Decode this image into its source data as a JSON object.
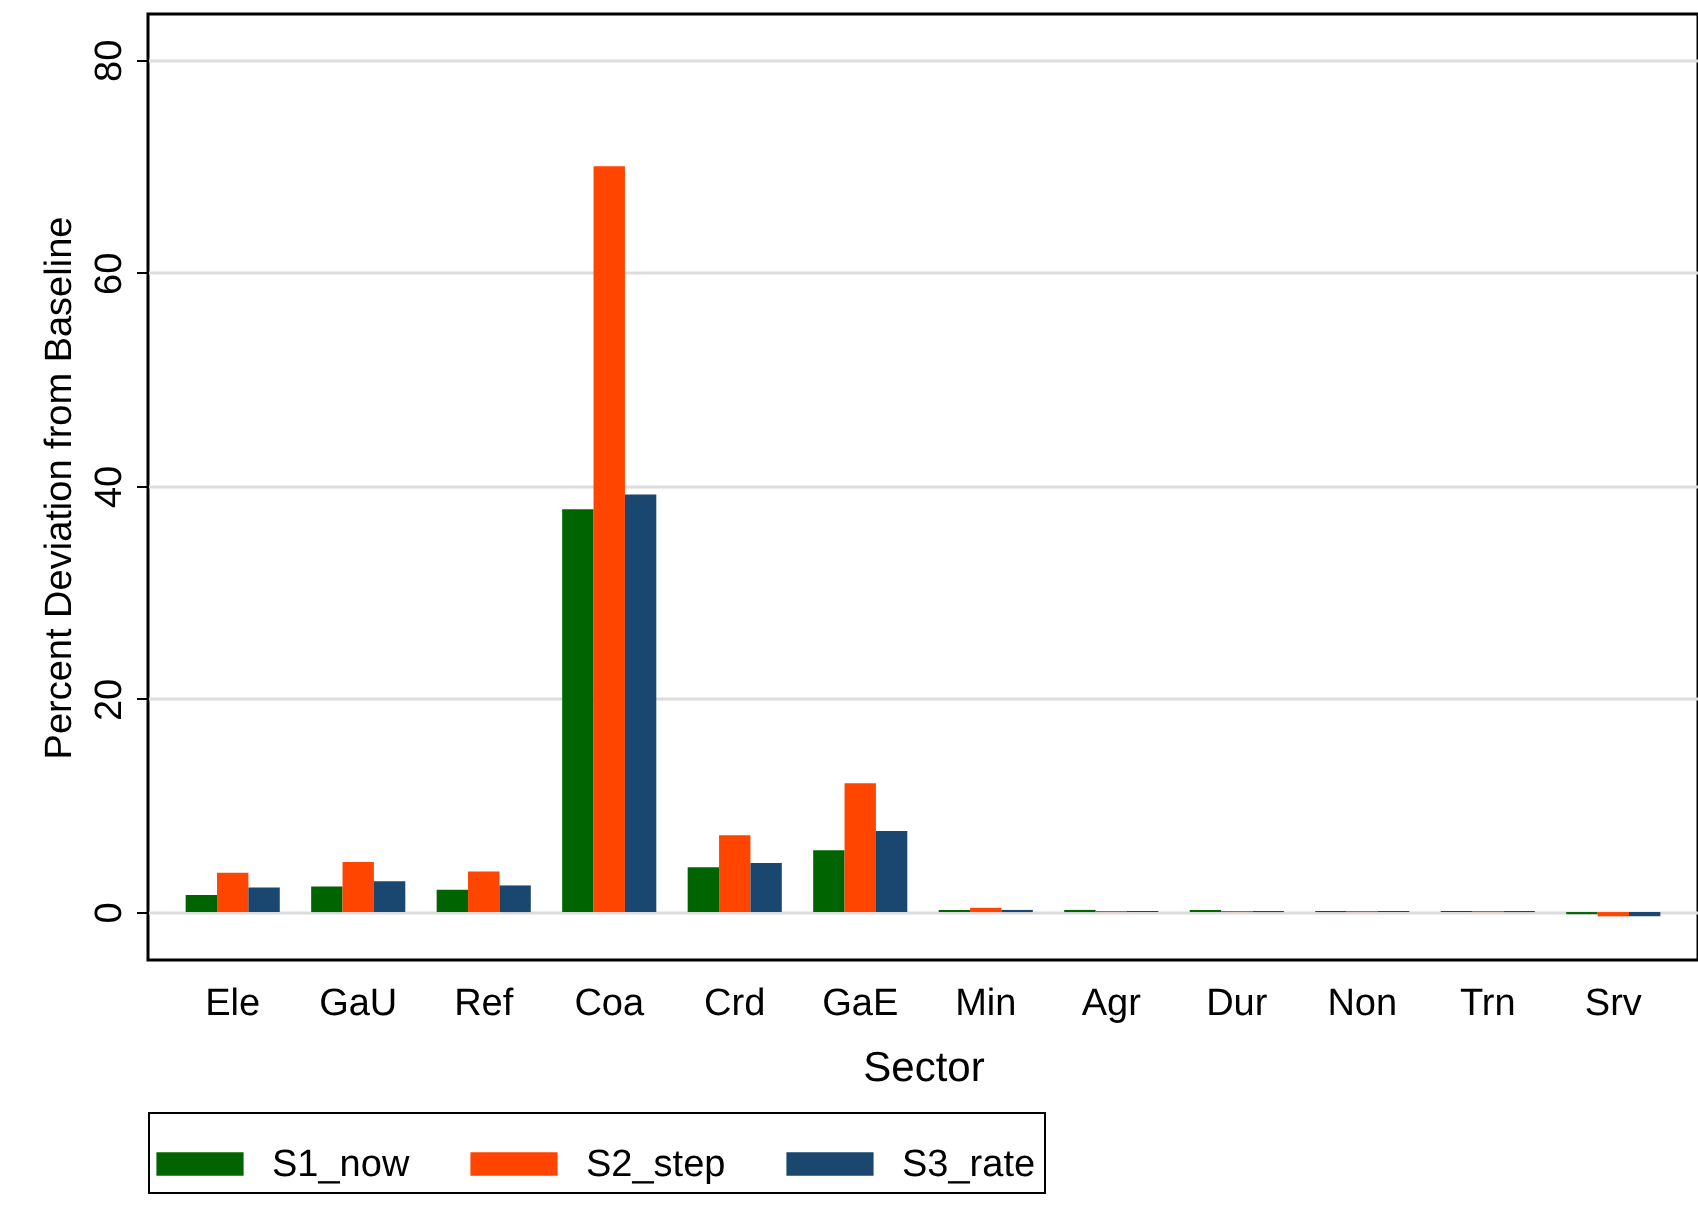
{
  "chart_data": {
    "type": "bar",
    "xlabel": "Sector",
    "ylabel": "Percent Deviation from Baseline",
    "categories": [
      "Ele",
      "GaU",
      "Ref",
      "Coa",
      "Crd",
      "GaE",
      "Min",
      "Agr",
      "Dur",
      "Non",
      "Trn",
      "Srv"
    ],
    "series": [
      {
        "name": "S1_now",
        "color": "#006400",
        "values": [
          1.6,
          2.4,
          2.1,
          37.8,
          4.2,
          5.8,
          0.2,
          0.2,
          0.2,
          0.1,
          0.1,
          -0.2
        ]
      },
      {
        "name": "S2_step",
        "color": "#ff4500",
        "values": [
          3.7,
          4.7,
          3.8,
          70.0,
          7.2,
          12.1,
          0.4,
          0.1,
          0.1,
          0.1,
          0.1,
          -0.4
        ]
      },
      {
        "name": "S3_rate",
        "color": "#1a476f",
        "values": [
          2.3,
          2.9,
          2.5,
          39.2,
          4.6,
          7.6,
          0.2,
          0.1,
          0.1,
          0.1,
          0.1,
          -0.4
        ]
      }
    ],
    "ylim": [
      -4.5,
      84.3
    ],
    "yticks": [
      0,
      20,
      40,
      60,
      80
    ],
    "grid": "y",
    "legend": "bottom"
  }
}
